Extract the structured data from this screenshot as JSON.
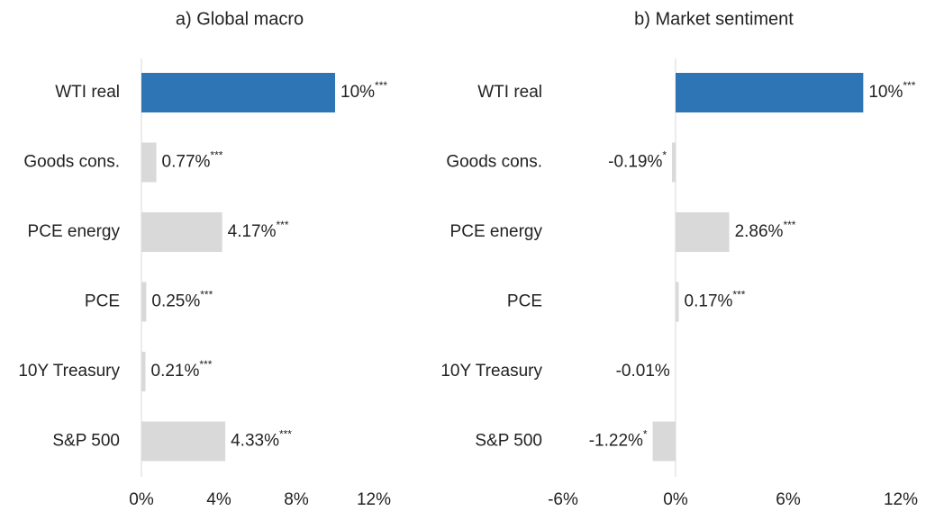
{
  "chart_data": [
    {
      "type": "bar",
      "orientation": "horizontal",
      "title": "a) Global macro",
      "categories": [
        "WTI real",
        "Goods cons.",
        "PCE energy",
        "PCE",
        "10Y Treasury",
        "S&P 500"
      ],
      "values": [
        10,
        0.77,
        4.17,
        0.25,
        0.21,
        4.33
      ],
      "value_labels": [
        "10%",
        "0.77%",
        "4.17%",
        "0.25%",
        "0.21%",
        "4.33%"
      ],
      "significance": [
        "***",
        "***",
        "***",
        "***",
        "***",
        "***"
      ],
      "colors": [
        "#2e75b6",
        "#d9d9d9",
        "#d9d9d9",
        "#d9d9d9",
        "#d9d9d9",
        "#d9d9d9"
      ],
      "xlim": [
        0,
        12
      ],
      "xticks": [
        {
          "value": 0,
          "label": "0%"
        },
        {
          "value": 4,
          "label": "4%"
        },
        {
          "value": 8,
          "label": "8%"
        },
        {
          "value": 12,
          "label": "12%"
        }
      ]
    },
    {
      "type": "bar",
      "orientation": "horizontal",
      "title": "b) Market sentiment",
      "categories": [
        "WTI real",
        "Goods cons.",
        "PCE energy",
        "PCE",
        "10Y Treasury",
        "S&P 500"
      ],
      "values": [
        10,
        -0.19,
        2.86,
        0.17,
        -0.01,
        -1.22
      ],
      "value_labels": [
        "10%",
        "-0.19%",
        "2.86%",
        "0.17%",
        "-0.01%",
        "-1.22%"
      ],
      "significance": [
        "***",
        "*",
        "***",
        "***",
        null,
        "*"
      ],
      "colors": [
        "#2e75b6",
        "#d9d9d9",
        "#d9d9d9",
        "#d9d9d9",
        "#d9d9d9",
        "#d9d9d9"
      ],
      "xlim": [
        -6,
        12
      ],
      "xticks": [
        {
          "value": -6,
          "label": "-6%"
        },
        {
          "value": 0,
          "label": "0%"
        },
        {
          "value": 6,
          "label": "6%"
        },
        {
          "value": 12,
          "label": "12%"
        }
      ]
    }
  ]
}
